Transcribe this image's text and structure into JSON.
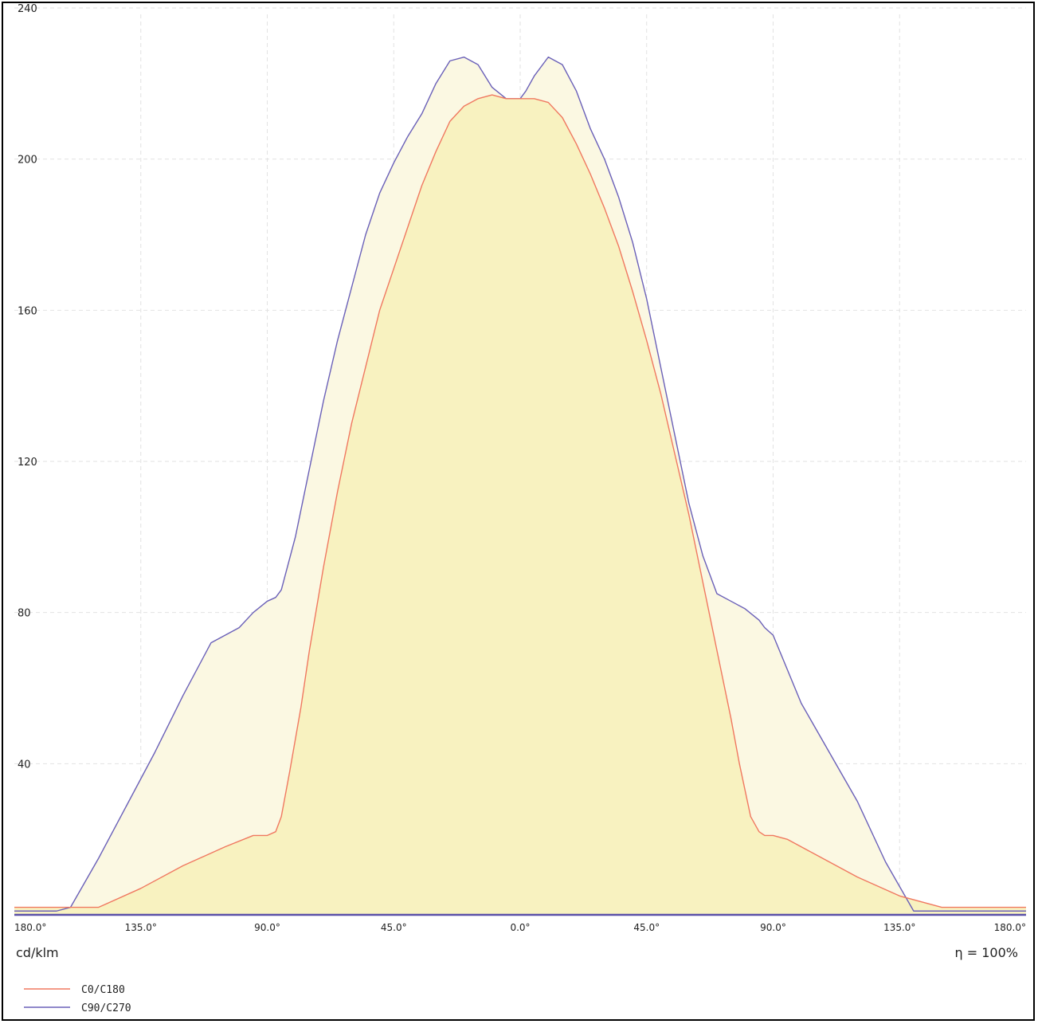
{
  "chart_data": {
    "type": "area",
    "unit_label": "cd/klm",
    "efficiency_label": "η = 100%",
    "ylim": [
      0,
      240
    ],
    "y_ticks": [
      40,
      80,
      120,
      160,
      200,
      240
    ],
    "y_tick_labels": [
      "40",
      "80",
      "120",
      "160",
      "200",
      "240"
    ],
    "xlim": [
      -180,
      180
    ],
    "x_ticks": [
      -180,
      -135,
      -90,
      -45,
      0,
      45,
      90,
      135,
      180
    ],
    "x_tick_labels": [
      "180.0°",
      "135.0°",
      "90.0°",
      "45.0°",
      "0.0°",
      "45.0°",
      "90.0°",
      "135.0°",
      "180.0°"
    ],
    "grid": true,
    "legend_position": "bottom-left",
    "series": [
      {
        "name": "C0/C180",
        "color": "#f07860",
        "fill": "#f8f2c0",
        "x": [
          -180,
          -165,
          -160,
          -150,
          -135,
          -120,
          -105,
          -95,
          -90,
          -87,
          -85,
          -82,
          -78,
          -75,
          -70,
          -65,
          -60,
          -55,
          -50,
          -45,
          -40,
          -35,
          -30,
          -25,
          -20,
          -15,
          -10,
          -5,
          0,
          5,
          10,
          15,
          20,
          25,
          30,
          35,
          40,
          45,
          50,
          55,
          60,
          65,
          70,
          75,
          78,
          82,
          85,
          87,
          90,
          95,
          105,
          120,
          135,
          150,
          155,
          160,
          170,
          180
        ],
        "y": [
          2,
          2,
          2,
          2,
          7,
          13,
          18,
          21,
          21,
          22,
          26,
          38,
          55,
          70,
          92,
          112,
          130,
          145,
          160,
          171,
          182,
          193,
          202,
          210,
          214,
          216,
          217,
          216,
          216,
          216,
          215,
          211,
          204,
          196,
          187,
          177,
          165,
          152,
          138,
          122,
          106,
          88,
          70,
          52,
          40,
          26,
          22,
          21,
          21,
          20,
          16,
          10,
          5,
          2,
          2,
          2,
          2,
          2
        ]
      },
      {
        "name": "C90/C270",
        "color": "#6a60b8",
        "fill": "#fbf8e2",
        "x": [
          -180,
          -165,
          -160,
          -150,
          -140,
          -130,
          -120,
          -110,
          -100,
          -95,
          -90,
          -87,
          -85,
          -80,
          -75,
          -70,
          -65,
          -60,
          -55,
          -50,
          -45,
          -40,
          -35,
          -30,
          -25,
          -20,
          -15,
          -10,
          -5,
          -2,
          0,
          2,
          5,
          10,
          15,
          20,
          25,
          30,
          35,
          40,
          45,
          50,
          55,
          60,
          65,
          70,
          75,
          80,
          85,
          87,
          90,
          95,
          100,
          110,
          120,
          130,
          140,
          150,
          160,
          165,
          180
        ],
        "y": [
          1,
          1,
          2,
          15,
          29,
          43,
          58,
          72,
          76,
          80,
          83,
          84,
          86,
          100,
          118,
          136,
          152,
          166,
          180,
          191,
          199,
          206,
          212,
          220,
          226,
          227,
          225,
          219,
          216,
          216,
          216,
          218,
          222,
          227,
          225,
          218,
          208,
          200,
          190,
          178,
          163,
          145,
          127,
          109,
          95,
          85,
          83,
          81,
          78,
          76,
          74,
          65,
          56,
          43,
          30,
          14,
          1,
          1,
          1,
          1,
          1
        ]
      }
    ]
  }
}
